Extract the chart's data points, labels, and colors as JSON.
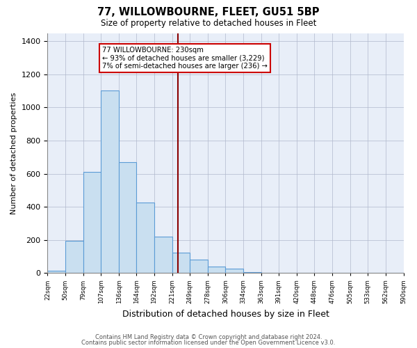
{
  "title": "77, WILLOWBOURNE, FLEET, GU51 5BP",
  "subtitle": "Size of property relative to detached houses in Fleet",
  "xlabel": "Distribution of detached houses by size in Fleet",
  "ylabel": "Number of detached properties",
  "bin_edges": [
    22,
    50,
    79,
    107,
    136,
    164,
    192,
    221,
    249,
    278,
    306,
    334,
    363,
    391,
    420,
    448,
    476,
    505,
    533,
    562,
    590
  ],
  "counts": [
    15,
    195,
    610,
    1105,
    670,
    425,
    220,
    125,
    80,
    40,
    28,
    5,
    0,
    0,
    0,
    0,
    0,
    0,
    0,
    0
  ],
  "bar_color": "#c9dff0",
  "bar_edge_color": "#5b9bd5",
  "reference_line_x": 230,
  "reference_line_color": "#8b0000",
  "annotation_text_line1": "77 WILLOWBOURNE: 230sqm",
  "annotation_text_line2": "← 93% of detached houses are smaller (3,229)",
  "annotation_text_line3": "7% of semi-detached houses are larger (236) →",
  "annotation_box_color": "#cc0000",
  "ylim": [
    0,
    1450
  ],
  "xlim": [
    22,
    590
  ],
  "tick_labels": [
    "22sqm",
    "50sqm",
    "79sqm",
    "107sqm",
    "136sqm",
    "164sqm",
    "192sqm",
    "221sqm",
    "249sqm",
    "278sqm",
    "306sqm",
    "334sqm",
    "363sqm",
    "391sqm",
    "420sqm",
    "448sqm",
    "476sqm",
    "505sqm",
    "533sqm",
    "562sqm",
    "590sqm"
  ],
  "footer1": "Contains HM Land Registry data © Crown copyright and database right 2024.",
  "footer2": "Contains public sector information licensed under the Open Government Licence v3.0.",
  "background_color": "#ffffff",
  "plot_background_color": "#e8eef8"
}
